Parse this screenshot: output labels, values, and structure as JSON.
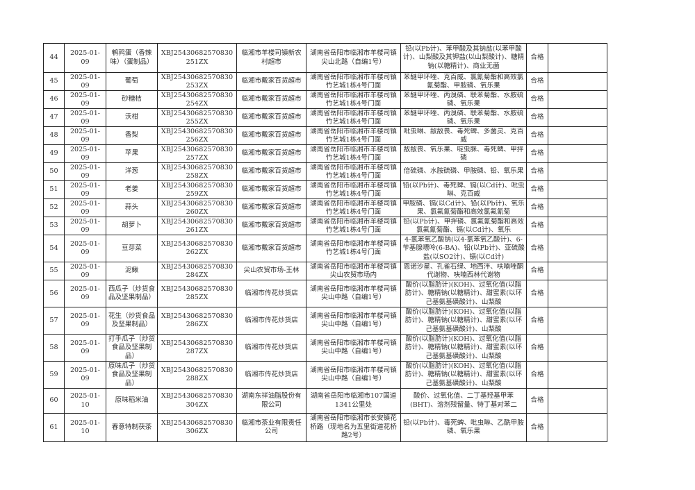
{
  "rows": [
    {
      "no": "44",
      "date": "2025-01-09",
      "name": "鹌鹑蛋（香辣味）（蛋制品）",
      "code": "XBJ25430682570830251ZX",
      "seller": "临湘市羊楼司镇新农村超市",
      "address": "湖南省岳阳市临湘市羊楼司镇尖山北路（自编1号）",
      "items": "铅(以Pb计)、苯甲酸及其钠盐(以苯甲酸计)、山梨酸及其钾盐(以山梨酸计)、糖精钠(以糖精计)、商业无菌",
      "result": "合格",
      "note": ""
    },
    {
      "no": "45",
      "date": "2025-01-09",
      "name": "葡萄",
      "code": "XBJ25430682570830253ZX",
      "seller": "临湘市戴家百货超市",
      "address": "湖南省岳阳市临湘市羊楼司镇竹艺城1栋4号门面",
      "items": "苯醚甲环唑、克百威、氯氰菊酯和高效氯氰菊酯、甲胺磷、氧乐果",
      "result": "合格",
      "note": ""
    },
    {
      "no": "46",
      "date": "2025-01-09",
      "name": "砂糖桔",
      "code": "XBJ25430682570830254ZX",
      "seller": "临湘市戴家百货超市",
      "address": "湖南省岳阳市临湘市羊楼司镇竹艺城1栋4号门面",
      "items": "苯醚甲环唑、丙溴磷、联苯菊酯、水胺硫磷、氧乐果",
      "result": "合格",
      "note": ""
    },
    {
      "no": "47",
      "date": "2025-01-09",
      "name": "沃柑",
      "code": "XBJ25430682570830255ZX",
      "seller": "临湘市戴家百货超市",
      "address": "湖南省岳阳市临湘市羊楼司镇竹艺城1栋4号门面",
      "items": "苯醚甲环唑、丙溴磷、联苯菊酯、水胺硫磷、氧乐果",
      "result": "合格",
      "note": ""
    },
    {
      "no": "48",
      "date": "2025-01-09",
      "name": "香梨",
      "code": "XBJ25430682570830256ZX",
      "seller": "临湘市戴家百货超市",
      "address": "湖南省岳阳市临湘市羊楼司镇竹艺城1栋4号门面",
      "items": "吡虫啉、敌敌畏、毒死蜱、多菌灵、克百威",
      "result": "合格",
      "note": ""
    },
    {
      "no": "49",
      "date": "2025-01-09",
      "name": "苹果",
      "code": "XBJ25430682570830257ZX",
      "seller": "临湘市戴家百货超市",
      "address": "湖南省岳阳市临湘市羊楼司镇竹艺城1栋4号门面",
      "items": "敌敌畏、氧乐果、啶虫脒、毒死蜱、甲拌磷",
      "result": "合格",
      "note": ""
    },
    {
      "no": "50",
      "date": "2025-01-09",
      "name": "洋葱",
      "code": "XBJ25430682570830258ZX",
      "seller": "临湘市戴家百货超市",
      "address": "湖南省岳阳市临湘市羊楼司镇竹艺城1栋4号门面",
      "items": "倍硫磷、水胺硫磷、甲胺磷、铅、氧乐果",
      "result": "合格",
      "note": ""
    },
    {
      "no": "51",
      "date": "2025-01-09",
      "name": "老姜",
      "code": "XBJ25430682570830259ZX",
      "seller": "临湘市戴家百货超市",
      "address": "湖南省岳阳市临湘市羊楼司镇竹艺城1栋4号门面",
      "items": "铅(以Pb计)、毒死蜱、镉(以Cd计)、吡虫啉、克百威",
      "result": "合格",
      "note": ""
    },
    {
      "no": "52",
      "date": "2025-01-09",
      "name": "蒜头",
      "code": "XBJ25430682570830260ZX",
      "seller": "临湘市戴家百货超市",
      "address": "湖南省岳阳市临湘市羊楼司镇竹艺城1栋4号门面",
      "items": "甲胺磷、镉(以Cd计)、铅(以Pb计)、氧乐果、氯氟氰菊酯和高效氯氟氰菊",
      "result": "合格",
      "note": ""
    },
    {
      "no": "53",
      "date": "2025-01-09",
      "name": "胡萝卜",
      "code": "XBJ25430682570830261ZX",
      "seller": "临湘市戴家百货超市",
      "address": "湖南省岳阳市临湘市羊楼司镇竹艺城1栋4号门面",
      "items": "铅(以Pb计)、甲拌磷、氯氟氰菊酯和高效氯氟氰菊酯、镉(以Cd计)、氧乐",
      "result": "合格",
      "note": ""
    },
    {
      "no": "54",
      "date": "2025-01-09",
      "name": "豆芽菜",
      "code": "XBJ25430682570830262ZX",
      "seller": "临湘市戴家百货超市",
      "address": "湖南省岳阳市临湘市羊楼司镇竹艺城1栋4号门面",
      "items": "4-氯苯氧乙酸钠(以4-氯苯氧乙酸计)、6-苄基腺嘌呤(6-BA)、铅(以Pb计)、亚硫酸盐(以SO2计)、镉(以Cd计)",
      "result": "合格",
      "note": ""
    },
    {
      "no": "55",
      "date": "2025-01-09",
      "name": "泥鳅",
      "code": "XBJ25430682570830284ZX",
      "seller": "尖山农贸市场-王林",
      "address": "湖南省岳阳市临湘市羊楼司镇尖山农贸市场内",
      "items": "恩诺沙星、孔雀石绿、地西泮、呋喃唑酮代谢物、呋喃西林代谢物",
      "result": "合格",
      "note": ""
    },
    {
      "no": "56",
      "date": "2025-01-09",
      "name": "西瓜子（炒货食品及坚果制品）",
      "code": "XBJ25430682570830285ZX",
      "seller": "临湘市传花炒货店",
      "address": "湖南省岳阳市临湘市羊楼司镇尖山中路（自编1号）",
      "items": "酸价(以脂肪计)(KOH)、过氧化值(以脂肪计)、糖精钠(以糖精计)、甜蜜素(以环己基氨基磺酸计)、山梨酸",
      "result": "合格",
      "note": ""
    },
    {
      "no": "57",
      "date": "2025-01-09",
      "name": "花生（炒货食品及坚果制品）",
      "code": "XBJ25430682570830286ZX",
      "seller": "临湘市传花炒货店",
      "address": "湖南省岳阳市临湘市羊楼司镇尖山中路（自编1号）",
      "items": "酸价(以脂肪计)(KOH)、过氧化值(以脂肪计)、糖精钠(以糖精计)、甜蜜素(以环己基氨基磺酸计)、山梨酸",
      "result": "合格",
      "note": ""
    },
    {
      "no": "58",
      "date": "2025-01-09",
      "name": "打手瓜子（炒货食品及坚果制品）",
      "code": "XBJ25430682570830287ZX",
      "seller": "临湘市传花炒货店",
      "address": "湖南省岳阳市临湘市羊楼司镇尖山中路（自编1号）",
      "items": "酸价(以脂肪计)(KOH)、过氧化值(以脂肪计)、糖精钠(以糖精计)、甜蜜素(以环己基氨基磺酸计)、山梨酸",
      "result": "合格",
      "note": ""
    },
    {
      "no": "59",
      "date": "2025-01-09",
      "name": "原味瓜子（炒货食品及坚果制品）",
      "code": "XBJ25430682570830288ZX",
      "seller": "临湘市传花炒货店",
      "address": "湖南省岳阳市临湘市羊楼司镇尖山中路（自编1号）",
      "items": "酸价(以脂肪计)(KOH)、过氧化值(以脂肪计)、糖精钠(以糖精计)、甜蜜素(以环己基氨基磺酸计)、山梨酸",
      "result": "合格",
      "note": ""
    },
    {
      "no": "60",
      "date": "2025-01-10",
      "name": "原味稻米油",
      "code": "XBJ25430682570830304ZX",
      "seller": "湖南东祥油脂股份有限公司",
      "address": "湖南省岳阳市临湘市107国道1341公里处",
      "items": "酸价、过氧化值、二丁基羟基甲苯(BHT)、溶剂残留量、特丁基对苯二",
      "result": "合格",
      "note": ""
    },
    {
      "no": "61",
      "date": "2025-01-10",
      "name": "春意特制茯茶",
      "code": "XBJ25430682570830306ZX",
      "seller": "临湘市茶业有限责任公司",
      "address": "湖南省岳阳市临湘市长安镇花桥路（现地名为五里街道花桥路2号）",
      "items": "铅(以Pb计)、毒死蜱、吡虫啉、乙酰甲胺磷、氧乐果",
      "result": "合格",
      "note": ""
    }
  ]
}
